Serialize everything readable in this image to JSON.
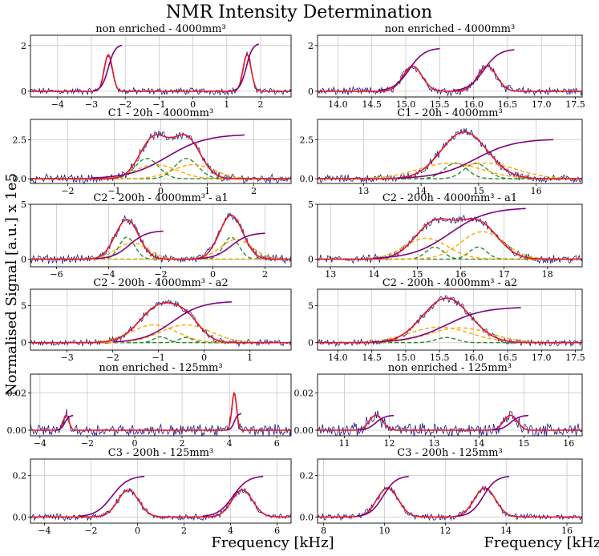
{
  "figure": {
    "title": "NMR Intensity Determination",
    "ylabel": "Normalised Signal [a.u.] x 1e5",
    "xlabel_left": "Frequency [kHz]",
    "xlabel_right": "Frequency [kHz]"
  },
  "colors": {
    "raw": "#1a1a8c",
    "fit_total": "#e8161e",
    "integral": "#800080",
    "component_green": "#2a8a2a",
    "component_orange": "#ffa500",
    "grid": "#c8c8c8"
  },
  "chart_data": [
    {
      "type": "line",
      "title": "non enriched - 4000mm³",
      "xlim": [
        -4.8,
        2.9
      ],
      "ylim": [
        -0.25,
        2.45
      ],
      "xticks": [
        -4,
        -3,
        -2,
        -1,
        0,
        1,
        2
      ],
      "yticks": [
        0,
        2
      ],
      "peaks": [
        {
          "c": -2.5,
          "w": 0.12,
          "a": 1.6
        },
        {
          "c": 1.6,
          "w": 0.12,
          "a": 1.6
        }
      ],
      "components": [],
      "integral": [
        {
          "from": -2.9,
          "to": -2.1,
          "top": 2.05
        },
        {
          "from": 1.2,
          "to": 1.95,
          "top": 2.1
        }
      ],
      "noise": 0.12
    },
    {
      "type": "line",
      "title": "non enriched - 4000mm³",
      "xlim": [
        13.7,
        17.6
      ],
      "ylim": [
        -0.25,
        2.45
      ],
      "xticks": [
        14.0,
        14.5,
        15.0,
        15.5,
        16.0,
        16.5,
        17.0,
        17.5
      ],
      "yticks": [
        0,
        2
      ],
      "peaks": [
        {
          "c": 15.1,
          "w": 0.14,
          "a": 1.1
        },
        {
          "c": 16.2,
          "w": 0.14,
          "a": 1.1
        }
      ],
      "components": [],
      "integral": [
        {
          "from": 14.6,
          "to": 15.5,
          "top": 1.9
        },
        {
          "from": 15.7,
          "to": 16.6,
          "top": 1.85
        }
      ],
      "noise": 0.14
    },
    {
      "type": "line",
      "title": "C1 - 20h - 4000mm³",
      "xlim": [
        -2.8,
        2.8
      ],
      "ylim": [
        -0.3,
        3.8
      ],
      "xticks": [
        -2,
        -1,
        0,
        1,
        2
      ],
      "yticks": [
        0.0,
        2.5
      ],
      "peaks": [
        {
          "c": -0.15,
          "w": 0.3,
          "a": 2.6
        },
        {
          "c": 0.55,
          "w": 0.3,
          "a": 2.6
        }
      ],
      "components": [
        {
          "c": -0.3,
          "w": 0.25,
          "a": 1.3,
          "color": "green"
        },
        {
          "c": 0.55,
          "w": 0.25,
          "a": 1.3,
          "color": "green"
        },
        {
          "c": -0.1,
          "w": 0.45,
          "a": 0.9,
          "color": "orange"
        },
        {
          "c": 0.7,
          "w": 0.45,
          "a": 0.9,
          "color": "orange"
        }
      ],
      "integral": [
        {
          "from": -1.5,
          "to": 1.8,
          "top": 2.85
        }
      ],
      "noise": 0.22
    },
    {
      "type": "line",
      "title": "C1 - 20h - 4000mm³",
      "xlim": [
        12.2,
        16.8
      ],
      "ylim": [
        -0.3,
        3.8
      ],
      "xticks": [
        13,
        14,
        15,
        16
      ],
      "yticks": [
        0.0,
        2.5
      ],
      "peaks": [
        {
          "c": 14.75,
          "w": 0.4,
          "a": 3.0
        }
      ],
      "components": [
        {
          "c": 14.6,
          "w": 0.2,
          "a": 1.0,
          "color": "green"
        },
        {
          "c": 14.95,
          "w": 0.2,
          "a": 1.0,
          "color": "green"
        },
        {
          "c": 14.5,
          "w": 0.55,
          "a": 1.0,
          "color": "orange"
        },
        {
          "c": 15.1,
          "w": 0.55,
          "a": 1.0,
          "color": "orange"
        }
      ],
      "integral": [
        {
          "from": 13.6,
          "to": 16.3,
          "top": 2.55
        }
      ],
      "noise": 0.2
    },
    {
      "type": "line",
      "title": "C2 - 200h - 4000mm³ - a1",
      "xlim": [
        -7.0,
        3.0
      ],
      "ylim": [
        -0.7,
        5.0
      ],
      "xticks": [
        -6,
        -4,
        -2,
        0,
        2
      ],
      "yticks": [
        0,
        5
      ],
      "peaks": [
        {
          "c": -3.3,
          "w": 0.45,
          "a": 3.6
        },
        {
          "c": 0.7,
          "w": 0.45,
          "a": 4.0
        }
      ],
      "components": [
        {
          "c": -3.3,
          "w": 0.3,
          "a": 2.0,
          "color": "green"
        },
        {
          "c": 0.7,
          "w": 0.3,
          "a": 2.0,
          "color": "green"
        },
        {
          "c": -3.1,
          "w": 0.6,
          "a": 1.5,
          "color": "orange"
        },
        {
          "c": 0.9,
          "w": 0.6,
          "a": 1.8,
          "color": "orange"
        }
      ],
      "integral": [
        {
          "from": -4.5,
          "to": -1.9,
          "top": 2.6
        },
        {
          "from": -0.6,
          "to": 2.0,
          "top": 2.4
        }
      ],
      "noise": 0.3
    },
    {
      "type": "line",
      "title": "C2 - 200h - 4000mm³ - a1",
      "xlim": [
        12.7,
        18.8
      ],
      "ylim": [
        -0.7,
        5.0
      ],
      "xticks": [
        13,
        14,
        15,
        16,
        17,
        18
      ],
      "yticks": [
        0,
        5
      ],
      "peaks": [
        {
          "c": 15.4,
          "w": 0.45,
          "a": 3.3
        },
        {
          "c": 16.4,
          "w": 0.45,
          "a": 3.3
        }
      ],
      "components": [
        {
          "c": 15.4,
          "w": 0.2,
          "a": 1.1,
          "color": "green"
        },
        {
          "c": 16.4,
          "w": 0.2,
          "a": 1.1,
          "color": "green"
        },
        {
          "c": 15.2,
          "w": 0.5,
          "a": 1.9,
          "color": "orange"
        },
        {
          "c": 16.5,
          "w": 0.5,
          "a": 2.5,
          "color": "orange"
        }
      ],
      "integral": [
        {
          "from": 14.0,
          "to": 17.5,
          "top": 4.7
        }
      ],
      "noise": 0.3
    },
    {
      "type": "line",
      "title": "C2 - 200h - 4000mm³ - a2",
      "xlim": [
        -3.8,
        1.9
      ],
      "ylim": [
        -1.0,
        7.2
      ],
      "xticks": [
        -3,
        -2,
        -1,
        0,
        1
      ],
      "yticks": [
        0,
        5
      ],
      "peaks": [
        {
          "c": -0.95,
          "w": 0.45,
          "a": 5.0
        },
        {
          "c": -0.35,
          "w": 0.3,
          "a": 2.0
        }
      ],
      "components": [
        {
          "c": -0.95,
          "w": 0.15,
          "a": 0.8,
          "color": "green"
        },
        {
          "c": -0.4,
          "w": 0.15,
          "a": 0.7,
          "color": "green"
        },
        {
          "c": -1.1,
          "w": 0.5,
          "a": 2.4,
          "color": "orange"
        },
        {
          "c": -0.4,
          "w": 0.55,
          "a": 2.4,
          "color": "orange"
        }
      ],
      "integral": [
        {
          "from": -2.0,
          "to": 0.6,
          "top": 5.6
        }
      ],
      "noise": 0.35
    },
    {
      "type": "line",
      "title": "C2 - 200h - 4000mm³ - a2",
      "xlim": [
        13.7,
        17.6
      ],
      "ylim": [
        -1.0,
        7.2
      ],
      "xticks": [
        14.0,
        14.5,
        15.0,
        15.5,
        16.0,
        16.5,
        17.0,
        17.5
      ],
      "yticks": [
        0,
        5
      ],
      "peaks": [
        {
          "c": 15.6,
          "w": 0.35,
          "a": 6.0
        }
      ],
      "components": [
        {
          "c": 15.6,
          "w": 0.15,
          "a": 0.7,
          "color": "green"
        },
        {
          "c": 15.5,
          "w": 0.45,
          "a": 2.1,
          "color": "orange"
        },
        {
          "c": 15.8,
          "w": 0.45,
          "a": 2.0,
          "color": "orange"
        }
      ],
      "integral": [
        {
          "from": 14.5,
          "to": 16.7,
          "top": 4.8
        }
      ],
      "noise": 0.35
    },
    {
      "type": "line",
      "title": "non enriched - 125mm³",
      "xlim": [
        -4.4,
        6.6
      ],
      "ylim": [
        -0.003,
        0.03
      ],
      "xticks": [
        -4,
        -2,
        0,
        2,
        4,
        6
      ],
      "yticks": [
        0.0,
        0.02
      ],
      "peaks": [
        {
          "c": -2.9,
          "w": 0.12,
          "a": 0.008
        },
        {
          "c": 4.2,
          "w": 0.1,
          "a": 0.02
        }
      ],
      "components": [],
      "integral": [
        {
          "from": -3.3,
          "to": -2.6,
          "top": 0.008
        },
        {
          "from": 3.9,
          "to": 4.5,
          "top": 0.009
        }
      ],
      "noise": 0.0025
    },
    {
      "type": "line",
      "title": "non enriched - 125mm³",
      "xlim": [
        10.4,
        16.3
      ],
      "ylim": [
        -0.003,
        0.03
      ],
      "xticks": [
        11,
        12,
        13,
        14,
        15,
        16
      ],
      "yticks": [
        0.0,
        0.02
      ],
      "peaks": [
        {
          "c": 11.7,
          "w": 0.15,
          "a": 0.008
        },
        {
          "c": 14.7,
          "w": 0.15,
          "a": 0.008
        }
      ],
      "components": [],
      "integral": [
        {
          "from": 11.3,
          "to": 12.1,
          "top": 0.008
        },
        {
          "from": 14.3,
          "to": 15.1,
          "top": 0.008
        }
      ],
      "noise": 0.003
    },
    {
      "type": "line",
      "title": "C3 - 200h - 125mm³",
      "xlim": [
        -4.6,
        6.6
      ],
      "ylim": [
        -0.03,
        0.28
      ],
      "xticks": [
        -4,
        -2,
        0,
        2,
        4,
        6
      ],
      "yticks": [
        0.0,
        0.2
      ],
      "peaks": [
        {
          "c": -0.4,
          "w": 0.45,
          "a": 0.13
        },
        {
          "c": 4.5,
          "w": 0.45,
          "a": 0.13
        }
      ],
      "components": [],
      "integral": [
        {
          "from": -2.5,
          "to": 0.3,
          "top": 0.2
        },
        {
          "from": 2.8,
          "to": 5.4,
          "top": 0.2
        }
      ],
      "noise": 0.012
    },
    {
      "type": "line",
      "title": "C3 - 200h - 125mm³",
      "xlim": [
        7.8,
        16.5
      ],
      "ylim": [
        -0.03,
        0.28
      ],
      "xticks": [
        8,
        10,
        12,
        14,
        16
      ],
      "yticks": [
        0.0,
        0.2
      ],
      "peaks": [
        {
          "c": 10.1,
          "w": 0.35,
          "a": 0.14
        },
        {
          "c": 13.3,
          "w": 0.35,
          "a": 0.14
        }
      ],
      "components": [],
      "integral": [
        {
          "from": 9.1,
          "to": 10.8,
          "top": 0.2
        },
        {
          "from": 12.4,
          "to": 14.1,
          "top": 0.2
        }
      ],
      "noise": 0.012
    }
  ]
}
